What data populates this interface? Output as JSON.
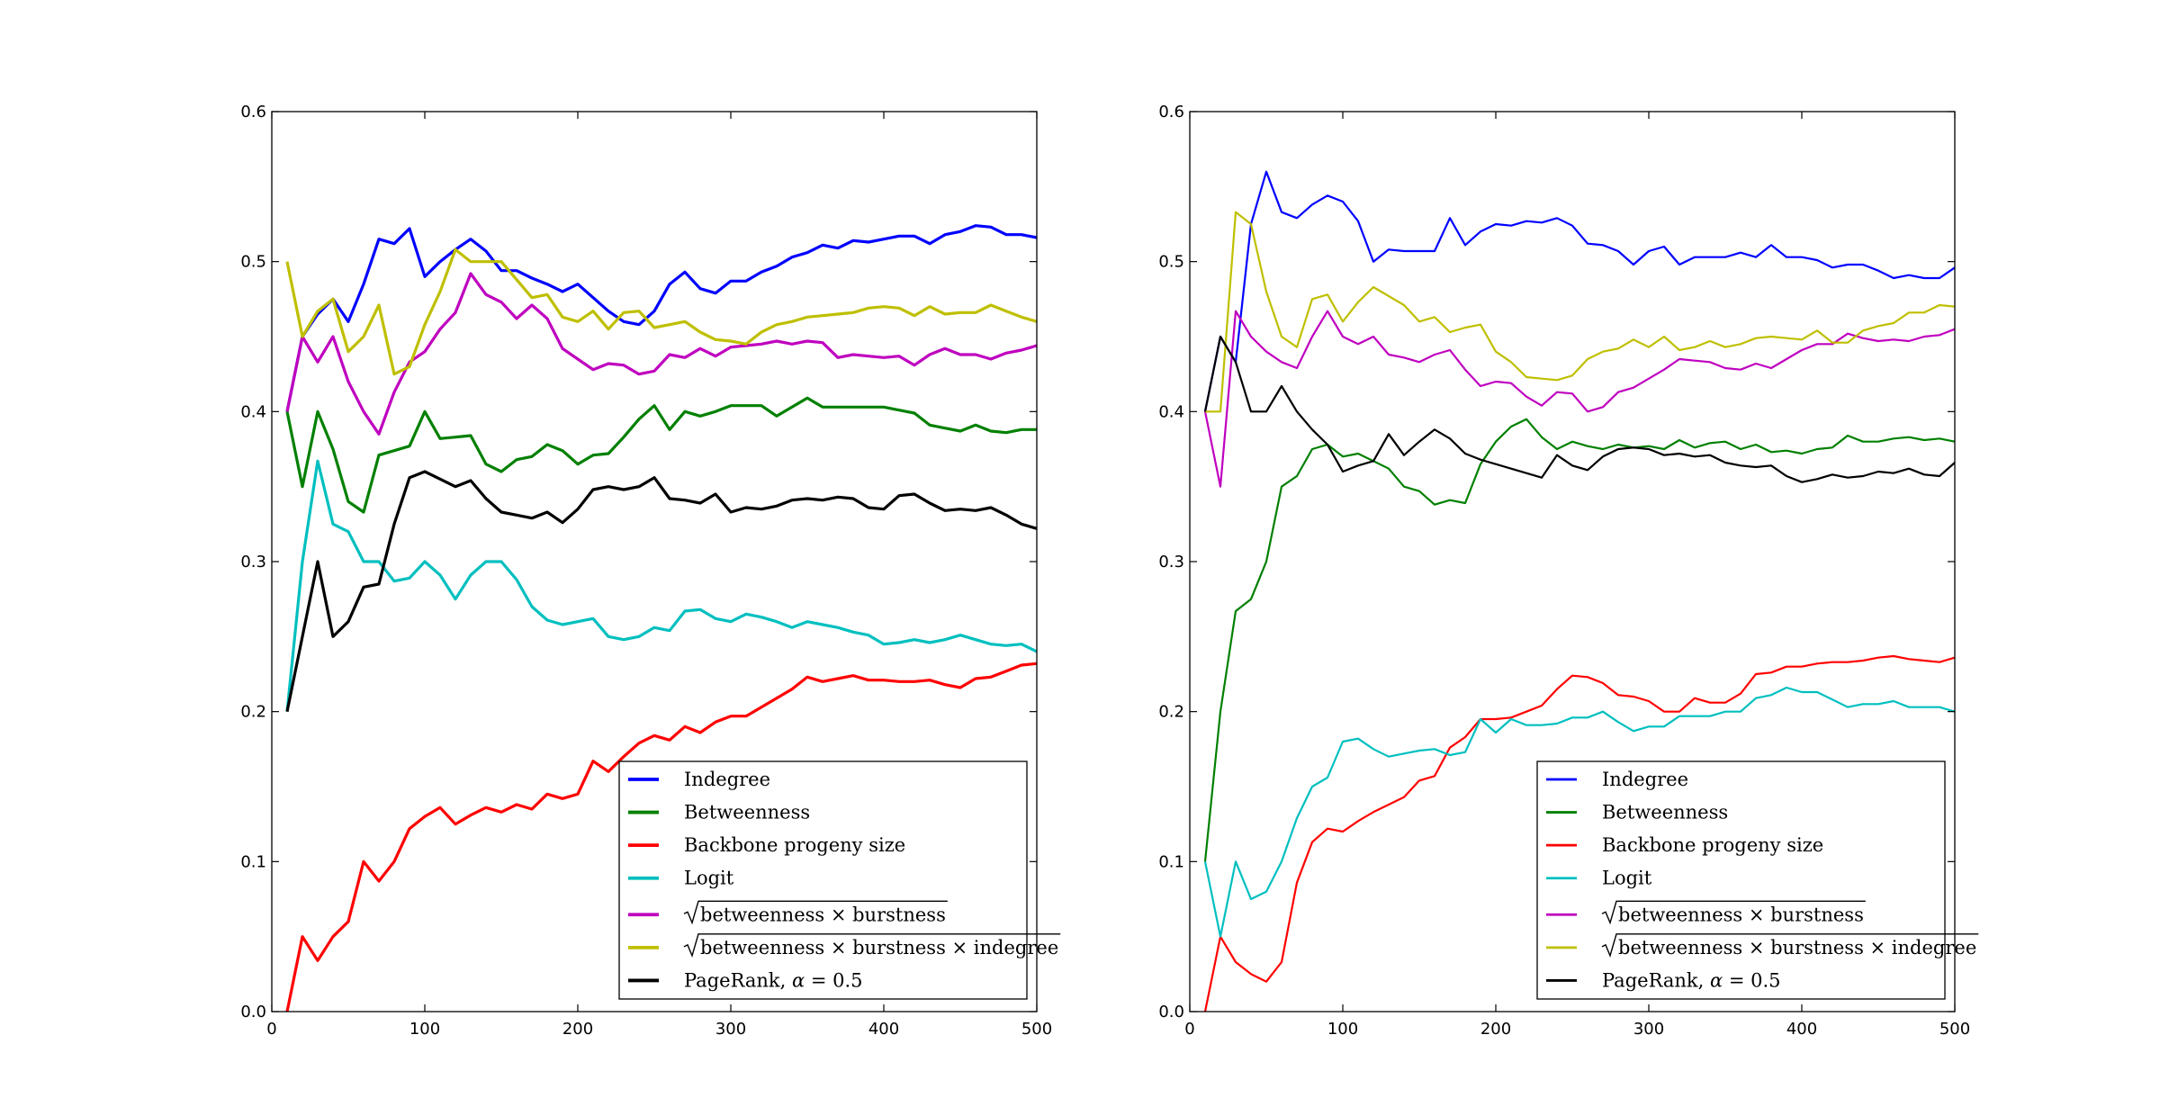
{
  "chart_data": [
    {
      "type": "line",
      "xlim": [
        0,
        500
      ],
      "ylim": [
        0,
        0.6
      ],
      "xticks": [
        "0",
        "100",
        "200",
        "300",
        "400",
        "500"
      ],
      "yticks": [
        "0.0",
        "0.1",
        "0.2",
        "0.3",
        "0.4",
        "0.5",
        "0.6"
      ],
      "legend_position": "lower-right",
      "line_style": "thick",
      "x": [
        10,
        20,
        30,
        40,
        50,
        60,
        70,
        80,
        90,
        100,
        110,
        120,
        130,
        140,
        150,
        160,
        170,
        180,
        190,
        200,
        210,
        220,
        230,
        240,
        250,
        260,
        270,
        280,
        290,
        300,
        310,
        320,
        330,
        340,
        350,
        360,
        370,
        380,
        390,
        400,
        410,
        420,
        430,
        440,
        450,
        460,
        470,
        480,
        490,
        500
      ],
      "series": [
        {
          "name": "Indegree",
          "color": "#0000ff",
          "values": [
            0.4,
            0.45,
            0.465,
            0.475,
            0.46,
            0.485,
            0.515,
            0.512,
            0.522,
            0.49,
            0.5,
            0.508,
            0.515,
            0.507,
            0.494,
            0.494,
            0.489,
            0.485,
            0.48,
            0.485,
            0.476,
            0.467,
            0.46,
            0.458,
            0.467,
            0.485,
            0.493,
            0.482,
            0.479,
            0.487,
            0.487,
            0.493,
            0.497,
            0.503,
            0.506,
            0.511,
            0.509,
            0.514,
            0.513,
            0.515,
            0.517,
            0.517,
            0.512,
            0.518,
            0.52,
            0.524,
            0.523,
            0.518,
            0.518,
            0.516
          ]
        },
        {
          "name": "Betweenness",
          "color": "#008000",
          "values": [
            0.4,
            0.35,
            0.4,
            0.375,
            0.34,
            0.333,
            0.371,
            0.374,
            0.377,
            0.4,
            0.382,
            0.383,
            0.384,
            0.365,
            0.36,
            0.368,
            0.37,
            0.378,
            0.374,
            0.365,
            0.371,
            0.372,
            0.383,
            0.395,
            0.404,
            0.388,
            0.4,
            0.397,
            0.4,
            0.404,
            0.404,
            0.404,
            0.397,
            0.403,
            0.409,
            0.403,
            0.403,
            0.403,
            0.403,
            0.403,
            0.401,
            0.399,
            0.391,
            0.389,
            0.387,
            0.391,
            0.387,
            0.386,
            0.388,
            0.388
          ]
        },
        {
          "name": "Backbone progeny size",
          "color": "#ff0000",
          "values": [
            0.0,
            0.05,
            0.034,
            0.05,
            0.06,
            0.1,
            0.087,
            0.1,
            0.122,
            0.13,
            0.136,
            0.125,
            0.131,
            0.136,
            0.133,
            0.138,
            0.135,
            0.145,
            0.142,
            0.145,
            0.167,
            0.16,
            0.17,
            0.179,
            0.184,
            0.181,
            0.19,
            0.186,
            0.193,
            0.197,
            0.197,
            0.203,
            0.209,
            0.215,
            0.223,
            0.22,
            0.222,
            0.224,
            0.221,
            0.221,
            0.22,
            0.22,
            0.221,
            0.218,
            0.216,
            0.222,
            0.223,
            0.227,
            0.231,
            0.232
          ]
        },
        {
          "name": "Logit",
          "color": "#00bfbf",
          "values": [
            0.2,
            0.3,
            0.367,
            0.325,
            0.32,
            0.3,
            0.3,
            0.287,
            0.289,
            0.3,
            0.291,
            0.275,
            0.291,
            0.3,
            0.3,
            0.288,
            0.27,
            0.261,
            0.258,
            0.26,
            0.262,
            0.25,
            0.248,
            0.25,
            0.256,
            0.254,
            0.267,
            0.268,
            0.262,
            0.26,
            0.265,
            0.263,
            0.26,
            0.256,
            0.26,
            0.258,
            0.256,
            0.253,
            0.251,
            0.245,
            0.246,
            0.248,
            0.246,
            0.248,
            0.251,
            0.248,
            0.245,
            0.244,
            0.245,
            0.24
          ]
        },
        {
          "name": "√betweenness × burstness",
          "label_radicand": "betweenness × burstness",
          "color": "#bf00bf",
          "values": [
            0.4,
            0.45,
            0.433,
            0.45,
            0.42,
            0.4,
            0.385,
            0.413,
            0.433,
            0.44,
            0.455,
            0.466,
            0.492,
            0.478,
            0.473,
            0.462,
            0.471,
            0.462,
            0.442,
            0.435,
            0.428,
            0.432,
            0.431,
            0.425,
            0.427,
            0.438,
            0.436,
            0.442,
            0.437,
            0.443,
            0.444,
            0.445,
            0.447,
            0.445,
            0.447,
            0.446,
            0.436,
            0.438,
            0.437,
            0.436,
            0.437,
            0.431,
            0.438,
            0.442,
            0.438,
            0.438,
            0.435,
            0.439,
            0.441,
            0.444
          ]
        },
        {
          "name": "√betweenness × burstness × indegree",
          "label_radicand": "betweenness × burstness × indegree",
          "color": "#bfbf00",
          "values": [
            0.5,
            0.45,
            0.467,
            0.475,
            0.44,
            0.45,
            0.471,
            0.425,
            0.43,
            0.458,
            0.48,
            0.508,
            0.5,
            0.5,
            0.5,
            0.488,
            0.476,
            0.478,
            0.463,
            0.46,
            0.467,
            0.455,
            0.466,
            0.467,
            0.456,
            0.458,
            0.46,
            0.453,
            0.448,
            0.447,
            0.445,
            0.453,
            0.458,
            0.46,
            0.463,
            0.464,
            0.465,
            0.466,
            0.469,
            0.47,
            0.469,
            0.464,
            0.47,
            0.465,
            0.466,
            0.466,
            0.471,
            0.467,
            0.463,
            0.46
          ]
        },
        {
          "name": "PageRank, α = 0.5",
          "label_prefix": "PageRank, ",
          "label_alpha": "α",
          "label_suffix": " = 0.5",
          "color": "#000000",
          "values": [
            0.2,
            0.25,
            0.3,
            0.25,
            0.26,
            0.283,
            0.285,
            0.325,
            0.356,
            0.36,
            0.355,
            0.35,
            0.354,
            0.342,
            0.333,
            0.331,
            0.329,
            0.333,
            0.326,
            0.335,
            0.348,
            0.35,
            0.348,
            0.35,
            0.356,
            0.342,
            0.341,
            0.339,
            0.345,
            0.333,
            0.336,
            0.335,
            0.337,
            0.341,
            0.342,
            0.341,
            0.343,
            0.342,
            0.336,
            0.335,
            0.344,
            0.345,
            0.339,
            0.334,
            0.335,
            0.334,
            0.336,
            0.331,
            0.325,
            0.322
          ]
        }
      ]
    },
    {
      "type": "line",
      "xlim": [
        0,
        500
      ],
      "ylim": [
        0,
        0.6
      ],
      "xticks": [
        "0",
        "100",
        "200",
        "300",
        "400",
        "500"
      ],
      "yticks": [
        "0.0",
        "0.1",
        "0.2",
        "0.3",
        "0.4",
        "0.5",
        "0.6"
      ],
      "legend_position": "lower-right",
      "line_style": "thin",
      "x": [
        10,
        20,
        30,
        40,
        50,
        60,
        70,
        80,
        90,
        100,
        110,
        120,
        130,
        140,
        150,
        160,
        170,
        180,
        190,
        200,
        210,
        220,
        230,
        240,
        250,
        260,
        270,
        280,
        290,
        300,
        310,
        320,
        330,
        340,
        350,
        360,
        370,
        380,
        390,
        400,
        410,
        420,
        430,
        440,
        450,
        460,
        470,
        480,
        490,
        500
      ],
      "series": [
        {
          "name": "Indegree",
          "color": "#0000ff",
          "values": [
            0.4,
            0.45,
            0.433,
            0.525,
            0.56,
            0.533,
            0.529,
            0.538,
            0.544,
            0.54,
            0.527,
            0.5,
            0.508,
            0.507,
            0.507,
            0.507,
            0.529,
            0.511,
            0.52,
            0.525,
            0.524,
            0.527,
            0.526,
            0.529,
            0.524,
            0.512,
            0.511,
            0.507,
            0.498,
            0.507,
            0.51,
            0.498,
            0.503,
            0.503,
            0.503,
            0.506,
            0.503,
            0.511,
            0.503,
            0.503,
            0.501,
            0.496,
            0.498,
            0.498,
            0.494,
            0.489,
            0.491,
            0.489,
            0.489,
            0.496
          ]
        },
        {
          "name": "Betweenness",
          "color": "#008000",
          "values": [
            0.1,
            0.2,
            0.267,
            0.275,
            0.3,
            0.35,
            0.357,
            0.375,
            0.378,
            0.37,
            0.372,
            0.367,
            0.362,
            0.35,
            0.347,
            0.338,
            0.341,
            0.339,
            0.365,
            0.38,
            0.39,
            0.395,
            0.383,
            0.375,
            0.38,
            0.377,
            0.375,
            0.378,
            0.376,
            0.377,
            0.375,
            0.381,
            0.376,
            0.379,
            0.38,
            0.375,
            0.378,
            0.373,
            0.374,
            0.372,
            0.375,
            0.376,
            0.384,
            0.38,
            0.38,
            0.382,
            0.383,
            0.381,
            0.382,
            0.38
          ]
        },
        {
          "name": "Backbone progeny size",
          "color": "#ff0000",
          "values": [
            0.0,
            0.05,
            0.033,
            0.025,
            0.02,
            0.033,
            0.086,
            0.113,
            0.122,
            0.12,
            0.127,
            0.133,
            0.138,
            0.143,
            0.154,
            0.157,
            0.176,
            0.183,
            0.195,
            0.195,
            0.196,
            0.2,
            0.204,
            0.215,
            0.224,
            0.223,
            0.219,
            0.211,
            0.21,
            0.207,
            0.2,
            0.2,
            0.209,
            0.206,
            0.206,
            0.212,
            0.225,
            0.226,
            0.23,
            0.23,
            0.232,
            0.233,
            0.233,
            0.234,
            0.236,
            0.237,
            0.235,
            0.234,
            0.233,
            0.236
          ]
        },
        {
          "name": "Logit",
          "color": "#00bfbf",
          "values": [
            0.1,
            0.05,
            0.1,
            0.075,
            0.08,
            0.1,
            0.129,
            0.15,
            0.156,
            0.18,
            0.182,
            0.175,
            0.17,
            0.172,
            0.174,
            0.175,
            0.171,
            0.173,
            0.195,
            0.186,
            0.195,
            0.191,
            0.191,
            0.192,
            0.196,
            0.196,
            0.2,
            0.193,
            0.187,
            0.19,
            0.19,
            0.197,
            0.197,
            0.197,
            0.2,
            0.2,
            0.209,
            0.211,
            0.216,
            0.213,
            0.213,
            0.208,
            0.203,
            0.205,
            0.205,
            0.207,
            0.203,
            0.203,
            0.203,
            0.2
          ]
        },
        {
          "name": "√betweenness × burstness",
          "label_radicand": "betweenness × burstness",
          "color": "#bf00bf",
          "values": [
            0.4,
            0.35,
            0.467,
            0.45,
            0.44,
            0.433,
            0.429,
            0.45,
            0.467,
            0.45,
            0.445,
            0.45,
            0.438,
            0.436,
            0.433,
            0.438,
            0.441,
            0.428,
            0.417,
            0.42,
            0.419,
            0.41,
            0.404,
            0.413,
            0.412,
            0.4,
            0.403,
            0.413,
            0.416,
            0.422,
            0.428,
            0.435,
            0.434,
            0.433,
            0.429,
            0.428,
            0.432,
            0.429,
            0.435,
            0.441,
            0.445,
            0.445,
            0.452,
            0.449,
            0.447,
            0.448,
            0.447,
            0.45,
            0.451,
            0.455
          ]
        },
        {
          "name": "√betweenness × burstness × indegree",
          "label_radicand": "betweenness × burstness × indegree",
          "color": "#bfbf00",
          "values": [
            0.4,
            0.4,
            0.533,
            0.525,
            0.48,
            0.45,
            0.443,
            0.475,
            0.478,
            0.46,
            0.473,
            0.483,
            0.477,
            0.471,
            0.46,
            0.463,
            0.453,
            0.456,
            0.458,
            0.44,
            0.433,
            0.423,
            0.422,
            0.421,
            0.424,
            0.435,
            0.44,
            0.442,
            0.448,
            0.443,
            0.45,
            0.441,
            0.443,
            0.447,
            0.443,
            0.445,
            0.449,
            0.45,
            0.449,
            0.448,
            0.454,
            0.446,
            0.446,
            0.454,
            0.457,
            0.459,
            0.466,
            0.466,
            0.471,
            0.47
          ]
        },
        {
          "name": "PageRank, α = 0.5",
          "label_prefix": "PageRank, ",
          "label_alpha": "α",
          "label_suffix": " = 0.5",
          "color": "#000000",
          "values": [
            0.4,
            0.45,
            0.433,
            0.4,
            0.4,
            0.417,
            0.4,
            0.388,
            0.378,
            0.36,
            0.364,
            0.367,
            0.385,
            0.371,
            0.38,
            0.388,
            0.382,
            0.372,
            0.368,
            0.365,
            0.362,
            0.359,
            0.356,
            0.371,
            0.364,
            0.361,
            0.37,
            0.375,
            0.376,
            0.375,
            0.371,
            0.372,
            0.37,
            0.371,
            0.366,
            0.364,
            0.363,
            0.364,
            0.357,
            0.353,
            0.355,
            0.358,
            0.356,
            0.357,
            0.36,
            0.359,
            0.362,
            0.358,
            0.357,
            0.366
          ]
        }
      ]
    }
  ]
}
